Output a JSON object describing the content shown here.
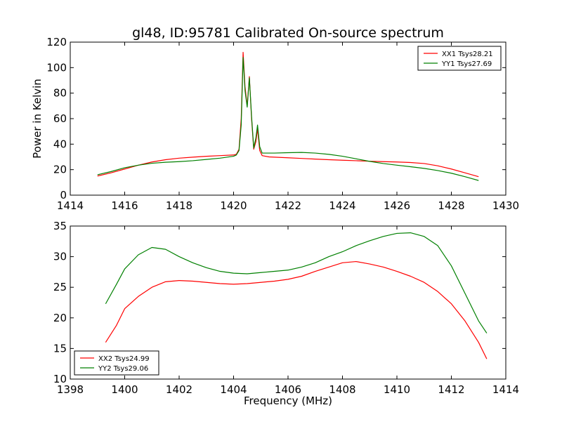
{
  "chart_data": [
    {
      "type": "line",
      "title": "gl48, ID:95781 Calibrated On-source spectrum",
      "xlabel": "",
      "ylabel": "Power in Kelvin",
      "xlim": [
        1414,
        1430
      ],
      "ylim": [
        0,
        120
      ],
      "xticks": [
        1414,
        1416,
        1418,
        1420,
        1422,
        1424,
        1426,
        1428,
        1430
      ],
      "yticks": [
        0,
        20,
        40,
        60,
        80,
        100,
        120
      ],
      "grid": false,
      "legend_position": "top-right",
      "series": [
        {
          "name": "XX1 Tsys28.21",
          "color": "#ff0000",
          "points": [
            [
              1415,
              15
            ],
            [
              1415.5,
              17.5
            ],
            [
              1416,
              20.5
            ],
            [
              1416.5,
              23.5
            ],
            [
              1417,
              26
            ],
            [
              1417.5,
              27.8
            ],
            [
              1418,
              29
            ],
            [
              1418.5,
              29.8
            ],
            [
              1419,
              30.5
            ],
            [
              1419.5,
              31
            ],
            [
              1420,
              31.5
            ],
            [
              1420.1,
              32
            ],
            [
              1420.2,
              36
            ],
            [
              1420.28,
              60
            ],
            [
              1420.35,
              112
            ],
            [
              1420.42,
              85
            ],
            [
              1420.5,
              70
            ],
            [
              1420.58,
              93
            ],
            [
              1420.66,
              60
            ],
            [
              1420.74,
              36
            ],
            [
              1420.82,
              42
            ],
            [
              1420.88,
              52
            ],
            [
              1420.96,
              35
            ],
            [
              1421.05,
              31
            ],
            [
              1421.3,
              30
            ],
            [
              1421.5,
              29.8
            ],
            [
              1422,
              29.3
            ],
            [
              1422.5,
              28.8
            ],
            [
              1423,
              28.3
            ],
            [
              1423.5,
              27.8
            ],
            [
              1424,
              27.4
            ],
            [
              1424.5,
              27
            ],
            [
              1425,
              26.6
            ],
            [
              1425.5,
              26.3
            ],
            [
              1426,
              26
            ],
            [
              1426.5,
              25.6
            ],
            [
              1427,
              24.8
            ],
            [
              1427.5,
              23
            ],
            [
              1428,
              20.5
            ],
            [
              1428.5,
              17.5
            ],
            [
              1429,
              14.5
            ]
          ]
        },
        {
          "name": "YY1 Tsys27.69",
          "color": "#008000",
          "points": [
            [
              1415,
              16
            ],
            [
              1415.5,
              18.5
            ],
            [
              1416,
              21.5
            ],
            [
              1416.5,
              23.5
            ],
            [
              1417,
              25
            ],
            [
              1417.5,
              25.8
            ],
            [
              1418,
              26.3
            ],
            [
              1418.5,
              27
            ],
            [
              1419,
              28
            ],
            [
              1419.5,
              29
            ],
            [
              1420,
              30.5
            ],
            [
              1420.1,
              31.5
            ],
            [
              1420.2,
              35
            ],
            [
              1420.28,
              55
            ],
            [
              1420.35,
              108
            ],
            [
              1420.42,
              82
            ],
            [
              1420.5,
              69
            ],
            [
              1420.58,
              92
            ],
            [
              1420.66,
              62
            ],
            [
              1420.74,
              37
            ],
            [
              1420.82,
              45
            ],
            [
              1420.88,
              55
            ],
            [
              1420.96,
              38
            ],
            [
              1421.05,
              33
            ],
            [
              1421.5,
              33
            ],
            [
              1422,
              33.3
            ],
            [
              1422.5,
              33.5
            ],
            [
              1423,
              33
            ],
            [
              1423.5,
              32
            ],
            [
              1424,
              30.5
            ],
            [
              1424.5,
              28.5
            ],
            [
              1425,
              26.5
            ],
            [
              1425.5,
              24.8
            ],
            [
              1426,
              23.5
            ],
            [
              1426.5,
              22.3
            ],
            [
              1427,
              21
            ],
            [
              1427.5,
              19.3
            ],
            [
              1428,
              17.2
            ],
            [
              1428.5,
              14.5
            ],
            [
              1429,
              11.5
            ]
          ]
        }
      ]
    },
    {
      "type": "line",
      "title": "",
      "xlabel": "Frequency (MHz)",
      "ylabel": "",
      "xlim": [
        1398,
        1414
      ],
      "ylim": [
        10,
        35
      ],
      "xticks": [
        1398,
        1400,
        1402,
        1404,
        1406,
        1408,
        1410,
        1412,
        1414
      ],
      "yticks": [
        10,
        15,
        20,
        25,
        30,
        35
      ],
      "grid": false,
      "legend_position": "bottom-left",
      "series": [
        {
          "name": "XX2 Tsys24.99",
          "color": "#ff0000",
          "points": [
            [
              1399.3,
              16
            ],
            [
              1399.7,
              18.8
            ],
            [
              1400,
              21.5
            ],
            [
              1400.5,
              23.5
            ],
            [
              1401,
              25
            ],
            [
              1401.5,
              25.9
            ],
            [
              1402,
              26.1
            ],
            [
              1402.5,
              26
            ],
            [
              1403,
              25.8
            ],
            [
              1403.5,
              25.6
            ],
            [
              1404,
              25.5
            ],
            [
              1404.5,
              25.6
            ],
            [
              1405,
              25.8
            ],
            [
              1405.5,
              26
            ],
            [
              1406,
              26.3
            ],
            [
              1406.5,
              26.8
            ],
            [
              1407,
              27.6
            ],
            [
              1407.5,
              28.3
            ],
            [
              1408,
              29
            ],
            [
              1408.5,
              29.2
            ],
            [
              1409,
              28.8
            ],
            [
              1409.5,
              28.3
            ],
            [
              1410,
              27.6
            ],
            [
              1410.5,
              26.8
            ],
            [
              1411,
              25.8
            ],
            [
              1411.5,
              24.3
            ],
            [
              1412,
              22.3
            ],
            [
              1412.5,
              19.5
            ],
            [
              1413,
              16
            ],
            [
              1413.3,
              13.3
            ]
          ]
        },
        {
          "name": "YY2 Tsys29.06",
          "color": "#008000",
          "points": [
            [
              1399.3,
              22.3
            ],
            [
              1399.7,
              25.5
            ],
            [
              1400,
              28
            ],
            [
              1400.5,
              30.3
            ],
            [
              1401,
              31.5
            ],
            [
              1401.5,
              31.2
            ],
            [
              1402,
              30
            ],
            [
              1402.5,
              29
            ],
            [
              1403,
              28.2
            ],
            [
              1403.5,
              27.6
            ],
            [
              1404,
              27.3
            ],
            [
              1404.5,
              27.2
            ],
            [
              1405,
              27.4
            ],
            [
              1405.5,
              27.6
            ],
            [
              1406,
              27.8
            ],
            [
              1406.5,
              28.3
            ],
            [
              1407,
              29
            ],
            [
              1407.5,
              30
            ],
            [
              1408,
              30.8
            ],
            [
              1408.5,
              31.8
            ],
            [
              1409,
              32.6
            ],
            [
              1409.5,
              33.3
            ],
            [
              1410,
              33.8
            ],
            [
              1410.5,
              33.9
            ],
            [
              1411,
              33.3
            ],
            [
              1411.5,
              31.8
            ],
            [
              1412,
              28.5
            ],
            [
              1412.5,
              24
            ],
            [
              1413,
              19.5
            ],
            [
              1413.3,
              17.5
            ]
          ]
        }
      ]
    }
  ]
}
